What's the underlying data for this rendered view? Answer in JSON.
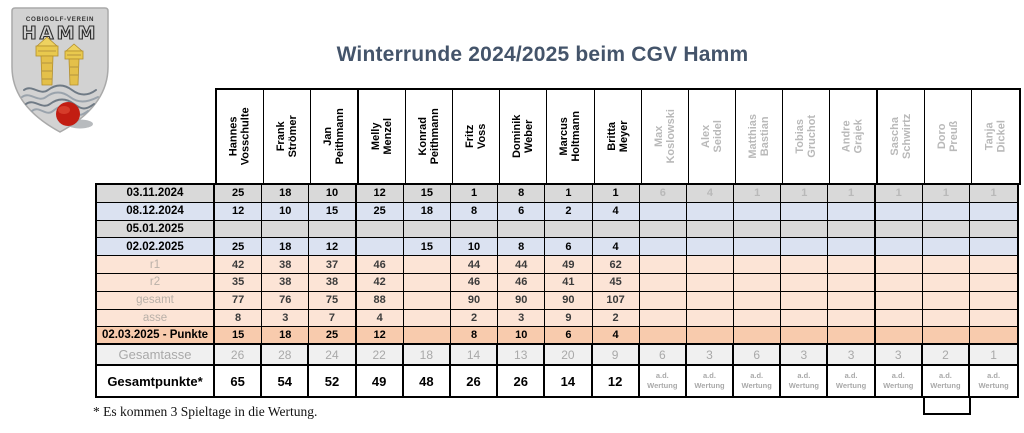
{
  "logo": {
    "line1": "COBIGOLF-VEREIN",
    "line2": "HAMM"
  },
  "title": "Winterrunde 2024/2025 beim CGV Hamm",
  "footnote": "* Es kommen 3 Spieltage in die Wertung.",
  "colors": {
    "title_text": "#44546a",
    "row_gray": "#d9d9d9",
    "row_blue": "#dbe2f1",
    "row_peach": "#fce4d6",
    "row_orange": "#f8cbad",
    "row_totals_gray": "#f0f0f0",
    "inactive_text": "#b9b9b9",
    "border": "#000000",
    "logo_shield_gray": "#d2d2d2",
    "logo_tower_yellow": "#e9c94e",
    "logo_ball_red": "#c21d12"
  },
  "players": [
    {
      "name": "Hannes\nVosschulte",
      "active": true
    },
    {
      "name": "Frank Strömer",
      "active": true
    },
    {
      "name": "Jan\nPeithmann",
      "active": true
    },
    {
      "name": "Melly Menzel",
      "active": true
    },
    {
      "name": "Konrad\nPeithmann",
      "active": true
    },
    {
      "name": "Fritz Voss",
      "active": true
    },
    {
      "name": "Dominik\nWeber",
      "active": true
    },
    {
      "name": "Marcus\nHoltmann",
      "active": true
    },
    {
      "name": "Britta Meyer",
      "active": true
    },
    {
      "name": "Max\nKoslowski",
      "active": false
    },
    {
      "name": "Alex Seidel",
      "active": false
    },
    {
      "name": "Matthias\nBastian",
      "active": false
    },
    {
      "name": "Tobias\nGruchot",
      "active": false
    },
    {
      "name": "Andre Grajek",
      "active": false
    },
    {
      "name": "Sascha\nSchwirtz",
      "active": false
    },
    {
      "name": "Doro Preuß",
      "active": false
    },
    {
      "name": "Tanja Dickel",
      "active": false
    }
  ],
  "rows": [
    {
      "label": "03.11.2024",
      "bg": "gray",
      "type": "date",
      "values": [
        "25",
        "18",
        "10",
        "12",
        "15",
        "1",
        "8",
        "1",
        "1",
        "6",
        "4",
        "1",
        "1",
        "1",
        "1",
        "1",
        "1"
      ]
    },
    {
      "label": "08.12.2024",
      "bg": "blue",
      "type": "date",
      "values": [
        "12",
        "10",
        "15",
        "25",
        "18",
        "8",
        "6",
        "2",
        "4",
        "",
        "",
        "",
        "",
        "",
        "",
        "",
        ""
      ]
    },
    {
      "label": "05.01.2025",
      "bg": "gray",
      "type": "date",
      "values": [
        "",
        "",
        "",
        "",
        "",
        "",
        "",
        "",
        "",
        "",
        "",
        "",
        "",
        "",
        "",
        "",
        ""
      ]
    },
    {
      "label": "02.02.2025",
      "bg": "blue",
      "type": "date",
      "values": [
        "25",
        "18",
        "12",
        "",
        "15",
        "10",
        "8",
        "6",
        "4",
        "",
        "",
        "",
        "",
        "",
        "",
        "",
        ""
      ]
    },
    {
      "label": "r1",
      "bg": "peach",
      "type": "calc",
      "values": [
        "42",
        "38",
        "37",
        "46",
        "",
        "44",
        "44",
        "49",
        "62",
        "",
        "",
        "",
        "",
        "",
        "",
        "",
        ""
      ]
    },
    {
      "label": "r2",
      "bg": "peach",
      "type": "calc",
      "values": [
        "35",
        "38",
        "38",
        "42",
        "",
        "46",
        "46",
        "41",
        "45",
        "",
        "",
        "",
        "",
        "",
        "",
        "",
        ""
      ]
    },
    {
      "label": "gesamt",
      "bg": "peach",
      "type": "calc",
      "values": [
        "77",
        "76",
        "75",
        "88",
        "",
        "90",
        "90",
        "90",
        "107",
        "",
        "",
        "",
        "",
        "",
        "",
        "",
        ""
      ]
    },
    {
      "label": "asse",
      "bg": "peach",
      "type": "calc",
      "values": [
        "8",
        "3",
        "7",
        "4",
        "",
        "2",
        "3",
        "9",
        "2",
        "",
        "",
        "",
        "",
        "",
        "",
        "",
        ""
      ]
    },
    {
      "label": "02.03.2025 - Punkte",
      "bg": "orange",
      "type": "points",
      "values": [
        "15",
        "18",
        "25",
        "12",
        "",
        "8",
        "10",
        "6",
        "4",
        "",
        "",
        "",
        "",
        "",
        "",
        "",
        ""
      ]
    },
    {
      "label": "Gesamtasse",
      "bg": "lgray",
      "type": "total_asse",
      "values": [
        "26",
        "28",
        "24",
        "22",
        "18",
        "14",
        "13",
        "20",
        "9",
        "6",
        "3",
        "6",
        "3",
        "3",
        "3",
        "2",
        "1"
      ]
    },
    {
      "label": "Gesamtpunkte*",
      "bg": "white",
      "type": "total_points",
      "values": [
        "65",
        "54",
        "52",
        "49",
        "48",
        "26",
        "26",
        "14",
        "12",
        "a.d.\nWertung",
        "a.d.\nWertung",
        "a.d.\nWertung",
        "a.d.\nWertung",
        "a.d.\nWertung",
        "a.d.\nWertung",
        "a.d.\nWertung",
        "a.d.\nWertung"
      ]
    }
  ]
}
